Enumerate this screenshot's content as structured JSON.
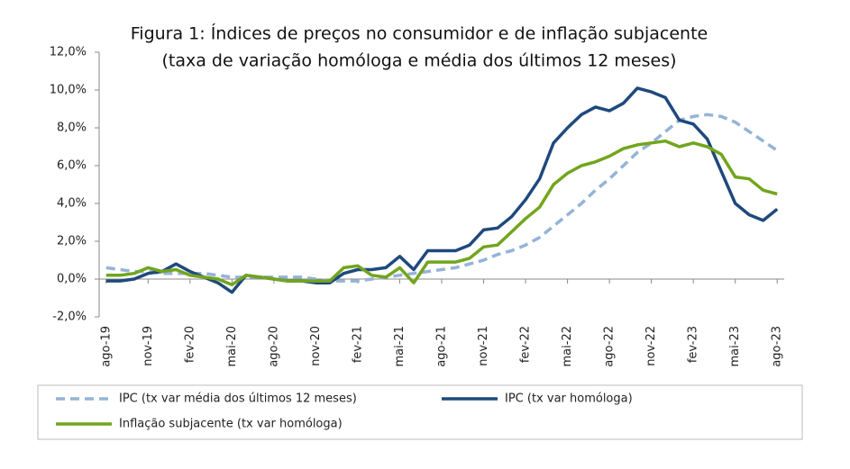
{
  "chart_data": {
    "type": "line",
    "title": "Figura 1: Índices de preços no consumidor e de inflação subjacente",
    "subtitle": "(taxa de variação homóloga e média dos últimos 12 meses)",
    "categories": [
      "ago-19",
      null,
      null,
      "nov-19",
      null,
      null,
      "fev-20",
      null,
      null,
      "mai-20",
      null,
      null,
      "ago-20",
      null,
      null,
      "nov-20",
      null,
      null,
      "fev-21",
      null,
      null,
      "mai-21",
      null,
      null,
      "ago-21",
      null,
      null,
      "nov-21",
      null,
      null,
      "fev-22",
      null,
      null,
      "mai-22",
      null,
      null,
      "ago-22",
      null,
      null,
      "nov-22",
      null,
      null,
      "fev-23",
      null,
      null,
      "mai-23",
      null,
      null,
      "ago-23"
    ],
    "series": [
      {
        "name": "IPC (tx var média dos últimos 12 meses)",
        "color": "#95b3d7",
        "dashed": true,
        "values": [
          0.6,
          0.5,
          0.4,
          0.4,
          0.3,
          0.3,
          0.3,
          0.3,
          0.2,
          0.1,
          0.1,
          0.1,
          0.1,
          0.1,
          0.1,
          0.0,
          -0.1,
          -0.1,
          -0.1,
          0.0,
          0.1,
          0.2,
          0.3,
          0.4,
          0.5,
          0.6,
          0.8,
          1.0,
          1.3,
          1.5,
          1.8,
          2.2,
          2.8,
          3.4,
          4.0,
          4.7,
          5.3,
          6.0,
          6.7,
          7.2,
          7.8,
          8.4,
          8.6,
          8.7,
          8.6,
          8.3,
          7.8,
          7.3,
          6.8
        ]
      },
      {
        "name": "IPC (tx var homóloga)",
        "color": "#1f497d",
        "dashed": false,
        "values": [
          -0.1,
          -0.1,
          0.0,
          0.3,
          0.4,
          0.8,
          0.4,
          0.1,
          -0.2,
          -0.7,
          0.2,
          0.1,
          0.0,
          -0.1,
          -0.1,
          -0.2,
          -0.2,
          0.3,
          0.5,
          0.5,
          0.6,
          1.2,
          0.5,
          1.5,
          1.5,
          1.5,
          1.8,
          2.6,
          2.7,
          3.3,
          4.2,
          5.3,
          7.2,
          8.0,
          8.7,
          9.1,
          8.9,
          9.3,
          10.1,
          9.9,
          9.6,
          8.4,
          8.2,
          7.4,
          5.7,
          4.0,
          3.4,
          3.1,
          3.7
        ]
      },
      {
        "name": "Inflação subjacente (tx var homóloga)",
        "color": "#72a51d",
        "dashed": false,
        "values": [
          0.2,
          0.2,
          0.3,
          0.6,
          0.4,
          0.5,
          0.2,
          0.1,
          0.0,
          -0.3,
          0.2,
          0.1,
          0.0,
          -0.1,
          -0.1,
          -0.1,
          -0.1,
          0.6,
          0.7,
          0.2,
          0.1,
          0.6,
          -0.2,
          0.9,
          0.9,
          0.9,
          1.1,
          1.7,
          1.8,
          2.5,
          3.2,
          3.8,
          5.0,
          5.6,
          6.0,
          6.2,
          6.5,
          6.9,
          7.1,
          7.2,
          7.3,
          7.0,
          7.2,
          7.0,
          6.6,
          5.4,
          5.3,
          4.7,
          4.5
        ]
      }
    ],
    "ylim": [
      -2,
      12
    ],
    "yticks": [
      {
        "value": -2,
        "label": "-2,0%"
      },
      {
        "value": 0,
        "label": "0,0%"
      },
      {
        "value": 2,
        "label": "2,0%"
      },
      {
        "value": 4,
        "label": "4,0%"
      },
      {
        "value": 6,
        "label": "6,0%"
      },
      {
        "value": 8,
        "label": "8,0%"
      },
      {
        "value": 10,
        "label": "10,0%"
      },
      {
        "value": 12,
        "label": "12,0%"
      }
    ],
    "grid": false
  }
}
